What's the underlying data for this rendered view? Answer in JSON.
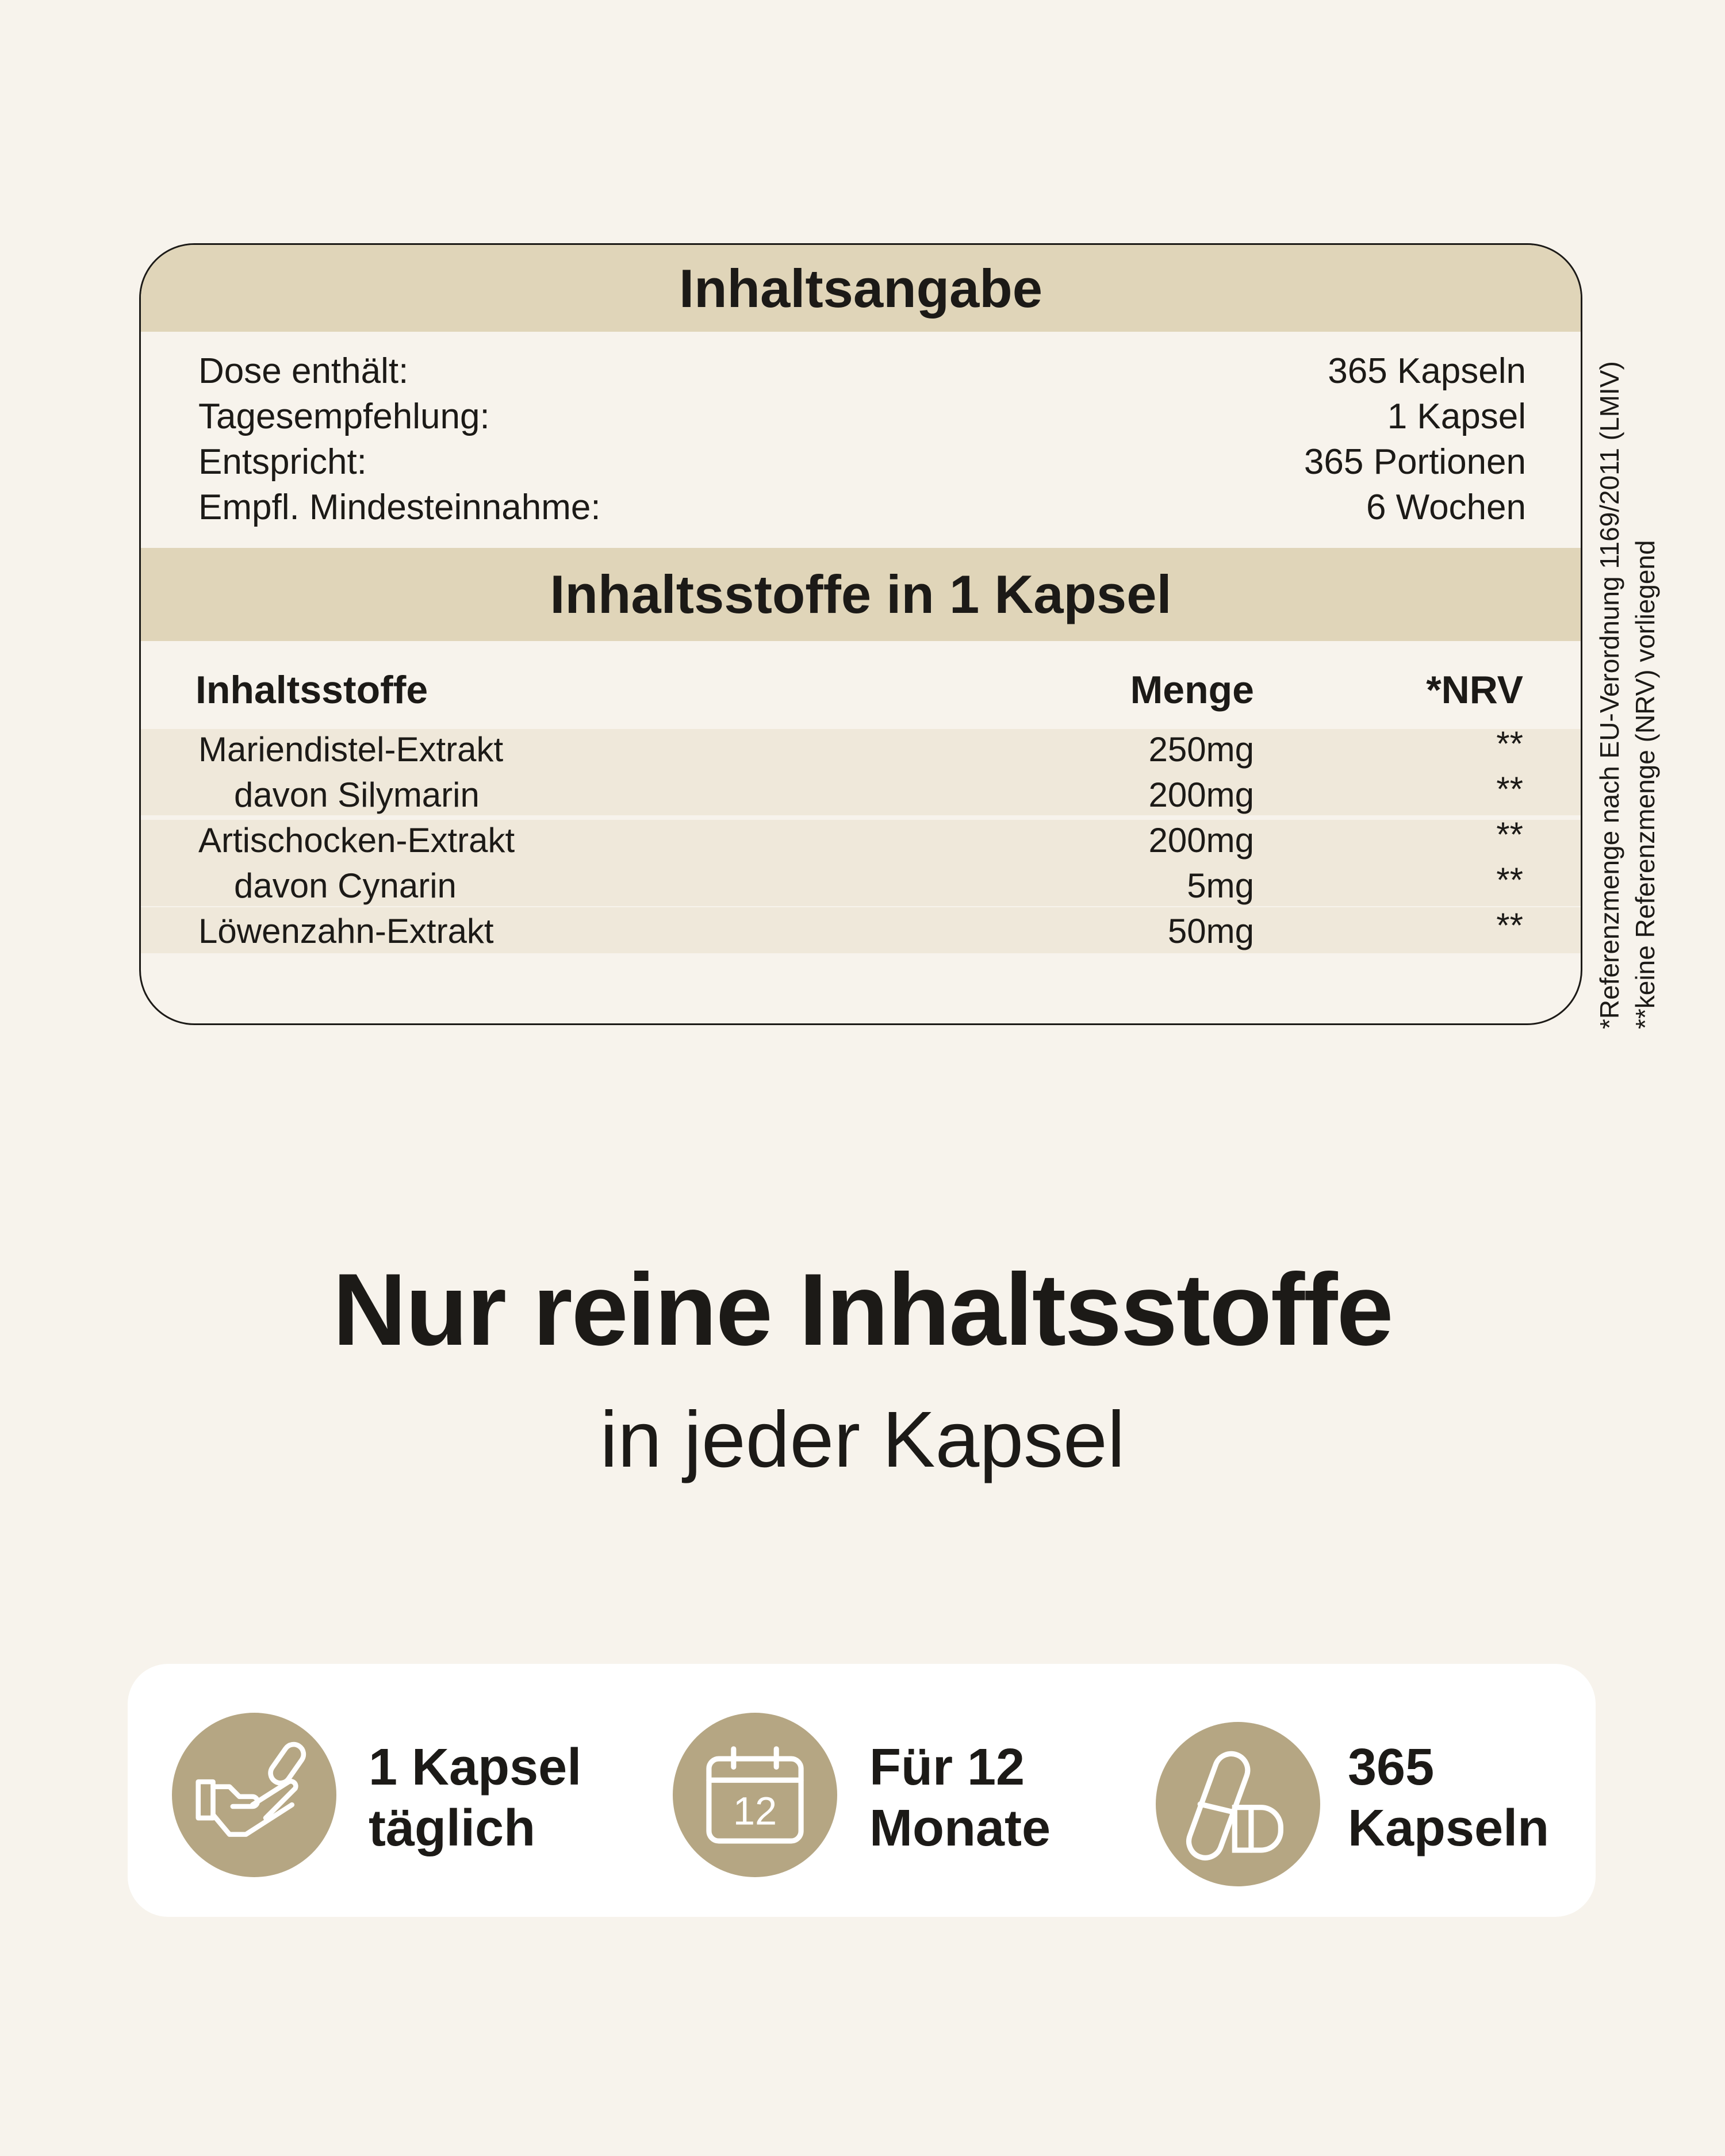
{
  "info": {
    "title": "Inhaltsangabe",
    "rows": [
      {
        "label": "Dose enthält:",
        "value": "365 Kapseln"
      },
      {
        "label": "Tagesempfehlung:",
        "value": "1 Kapsel"
      },
      {
        "label": "Entspricht:",
        "value": "365 Portionen"
      },
      {
        "label": "Empfl. Mindesteinnahme:",
        "value": "6 Wochen"
      }
    ]
  },
  "ingredients": {
    "title": "Inhaltsstoffe in 1 Kapsel",
    "headers": {
      "name": "Inhaltsstoffe",
      "amount": "Menge",
      "nrv": "*NRV"
    },
    "rows": [
      {
        "name": "Mariendistel-Extrakt",
        "amount": "250mg",
        "nrv": "**"
      },
      {
        "name": "davon Silymarin",
        "amount": "200mg",
        "nrv": "**"
      },
      {
        "name": "Artischocken-Extrakt",
        "amount": "200mg",
        "nrv": "**"
      },
      {
        "name": "davon Cynarin",
        "amount": "5mg",
        "nrv": "**"
      },
      {
        "name": "Löwenzahn-Extrakt",
        "amount": "50mg",
        "nrv": "**"
      }
    ]
  },
  "notes": {
    "nrv": "*Referenzmenge nach EU-Verordnung 1169/2011 (LMIV)",
    "none": "**keine Referenzmenge (NRV) vorliegend"
  },
  "headline": "Nur reine Inhaltsstoffe",
  "subline": "in jeder Kapsel",
  "features": [
    {
      "icon": "hand-capsule-icon",
      "line1": "1 Kapsel",
      "line2": "täglich"
    },
    {
      "icon": "calendar-icon",
      "calendar_number": "12",
      "line1": "Für 12",
      "line2": "Monate"
    },
    {
      "icon": "capsules-icon",
      "line1": "365",
      "line2": "Kapseln"
    }
  ],
  "colors": {
    "background": "#f7f3ec",
    "band": "#e0d5b9",
    "row_shade": "#efe8da",
    "icon_circle": "#b5a683"
  }
}
